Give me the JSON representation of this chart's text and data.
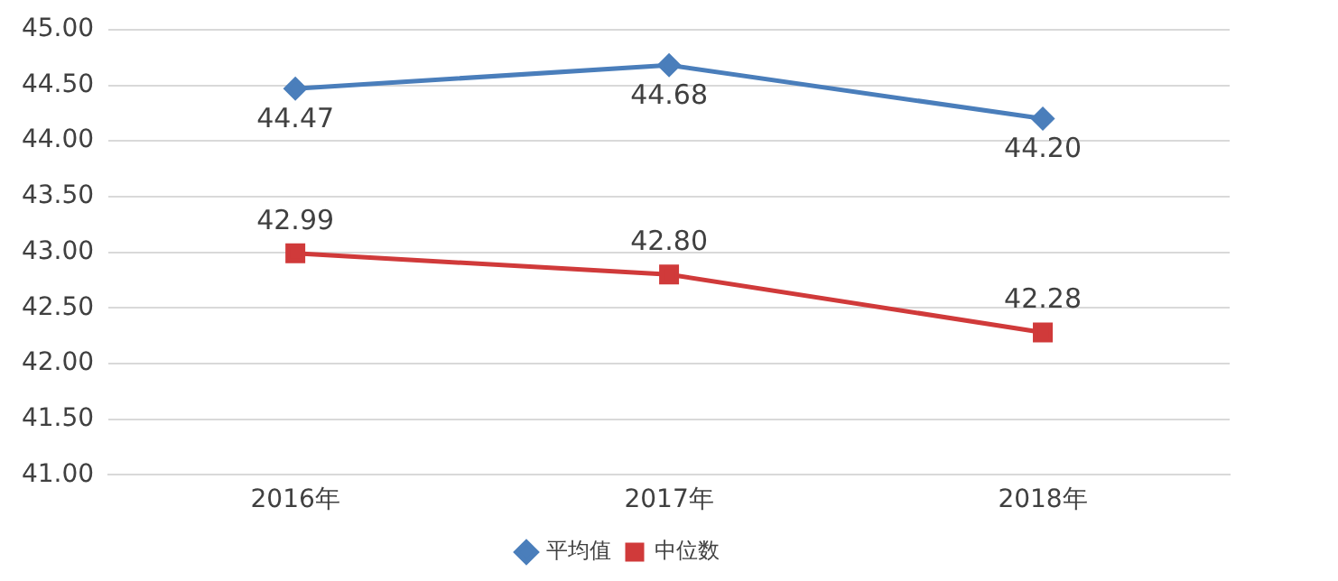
{
  "chart_data": {
    "type": "line",
    "categories": [
      "2016年",
      "2017年",
      "2018年"
    ],
    "series": [
      {
        "name": "平均值",
        "color": "#4a7ebb",
        "marker": "diamond",
        "values": [
          44.47,
          44.68,
          44.2
        ],
        "value_labels": [
          "44.47",
          "44.68",
          "44.20"
        ]
      },
      {
        "name": "中位数",
        "color": "#d03a3a",
        "marker": "square",
        "values": [
          42.99,
          42.8,
          42.28
        ],
        "value_labels": [
          "42.99",
          "42.80",
          "42.28"
        ]
      }
    ],
    "ylim": [
      41,
      45
    ],
    "yticks": [
      {
        "value": 41,
        "label": "41.00"
      },
      {
        "value": 41.5,
        "label": "41.50"
      },
      {
        "value": 42,
        "label": "42.00"
      },
      {
        "value": 42.5,
        "label": "42.50"
      },
      {
        "value": 43,
        "label": "43.00"
      },
      {
        "value": 43.5,
        "label": "43.50"
      },
      {
        "value": 44,
        "label": "44.00"
      },
      {
        "value": 44.5,
        "label": "44.50"
      },
      {
        "value": 45,
        "label": "45.00"
      }
    ],
    "grid": "y",
    "legend": "bottom"
  }
}
